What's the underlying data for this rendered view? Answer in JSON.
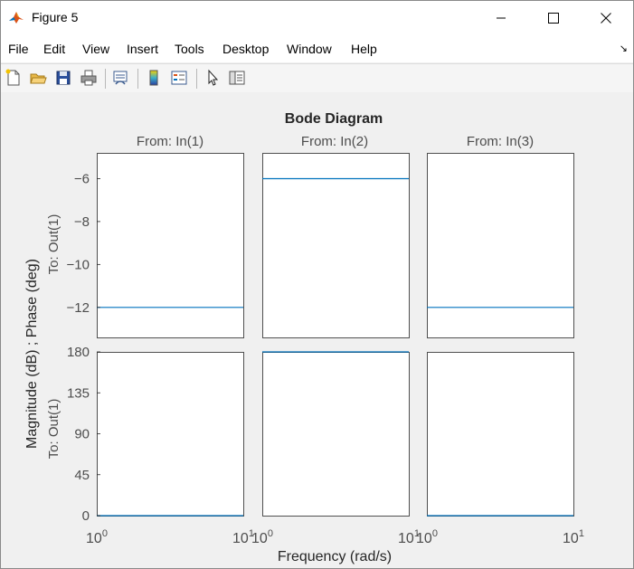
{
  "window": {
    "title": "Figure 5"
  },
  "menu": [
    "File",
    "Edit",
    "View",
    "Insert",
    "Tools",
    "Desktop",
    "Window",
    "Help"
  ],
  "toolbar_icons": [
    "new-figure-icon",
    "open-file-icon",
    "save-icon",
    "print-icon",
    "link-plot-icon",
    "insert-colorbar-icon",
    "insert-legend-icon",
    "pointer-icon",
    "property-inspector-icon"
  ],
  "colors": {
    "line": "#0072bd",
    "axes_text": "#4d4d4d"
  },
  "chart_data": {
    "type": "line",
    "title": "Bode Diagram",
    "xlabel": "Frequency  (rad/s)",
    "ylabel": "Magnitude (dB) ; Phase (deg)",
    "column_titles": [
      "From: In(1)",
      "From: In(2)",
      "From: In(3)"
    ],
    "row_labels": [
      "To: Out(1)",
      "To: Out(1)"
    ],
    "x_scale": "log",
    "xlim": [
      1,
      10
    ],
    "x_ticks": [
      {
        "base": "10",
        "exp": "0"
      },
      {
        "base": "10",
        "exp": "1"
      }
    ],
    "magnitude": {
      "ylim": [
        -13.4,
        -4.8
      ],
      "yticks": [
        -6,
        -8,
        -10,
        -12
      ],
      "series": [
        {
          "x": [
            1,
            10
          ],
          "y": [
            -12,
            -12
          ]
        },
        {
          "x": [
            1,
            10
          ],
          "y": [
            -6,
            -6
          ]
        },
        {
          "x": [
            1,
            10
          ],
          "y": [
            -12,
            -12
          ]
        }
      ]
    },
    "phase": {
      "ylim": [
        0,
        180
      ],
      "yticks": [
        180,
        135,
        90,
        45,
        0
      ],
      "series": [
        {
          "x": [
            1,
            10
          ],
          "y": [
            0,
            0
          ]
        },
        {
          "x": [
            1,
            10
          ],
          "y": [
            180,
            180
          ]
        },
        {
          "x": [
            1,
            10
          ],
          "y": [
            0,
            0
          ]
        }
      ]
    },
    "grid": false
  }
}
